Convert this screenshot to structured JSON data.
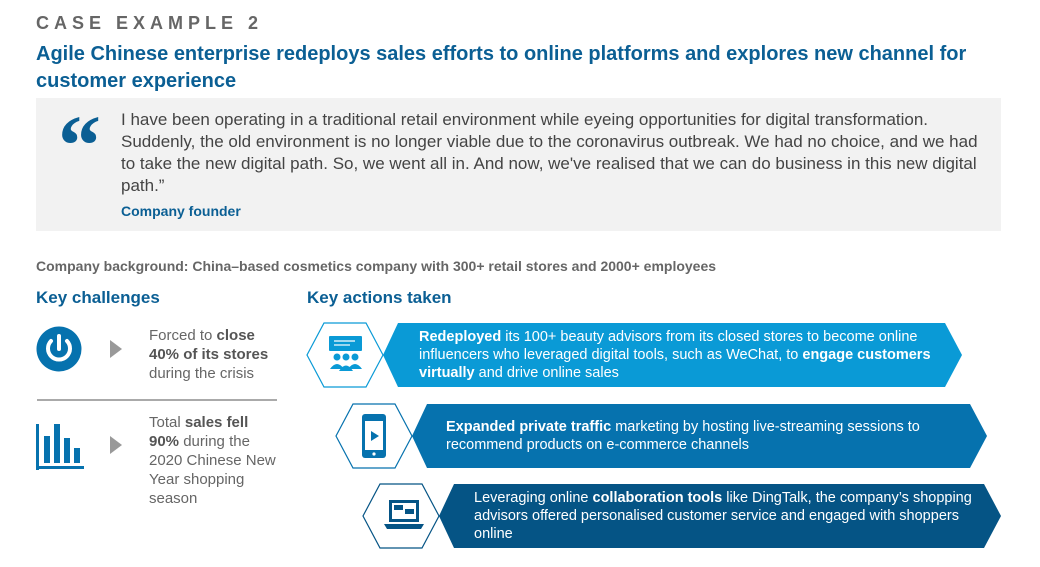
{
  "eyebrow": "CASE EXAMPLE 2",
  "title": "Agile Chinese enterprise redeploys sales efforts to online platforms and explores new channel for customer experience",
  "quote": {
    "text": "I have been operating in a traditional retail environment while eyeing opportunities for digital transformation. Suddenly, the old environment is no longer viable due to the coronavirus outbreak. We had no choice, and we had to take the new digital path. So, we went all in. And now, we've realised that we can do business in this new digital path.”",
    "mark": "“",
    "author": "Company founder"
  },
  "background": "Company background: China–based cosmetics company with 300+ retail stores and 2000+ employees",
  "challenges": {
    "heading": "Key challenges",
    "items": [
      {
        "icon": "power-icon",
        "p1": "Forced to ",
        "b1": "close 40% of its stores",
        "p2": " during the crisis"
      },
      {
        "icon": "bar-chart-icon",
        "p1": "Total ",
        "b1": "sales fell 90%",
        "p2": " during the 2020 Chinese New Year shopping season"
      }
    ]
  },
  "actions": {
    "heading": "Key actions taken",
    "items": [
      {
        "icon": "people-chat-icon",
        "color": "#0a9ad6",
        "b1": "Redeployed",
        "p1": " its 100+ beauty advisors from its closed stores to become online influencers who leveraged digital tools, such as WeChat, to ",
        "b2": "engage customers virtually",
        "p2": " and drive online sales"
      },
      {
        "icon": "phone-video-icon",
        "color": "#0672ae",
        "b1": "Expanded private traffic",
        "p1": " marketing by hosting live-streaming sessions to recommend products on e-commerce channels",
        "b2": "",
        "p2": ""
      },
      {
        "icon": "laptop-chat-icon",
        "color": "#055485",
        "pre": "Leveraging online ",
        "b1": "collaboration tools",
        "p1": " like DingTalk, the company’s shopping advisors offered personalised customer service and engaged with shoppers online",
        "b2": "",
        "p2": ""
      }
    ]
  },
  "colors": {
    "accent": "#0b5f94",
    "light_blue": "#0a9ad6",
    "mid_blue": "#0672ae",
    "dark_blue": "#055485"
  }
}
